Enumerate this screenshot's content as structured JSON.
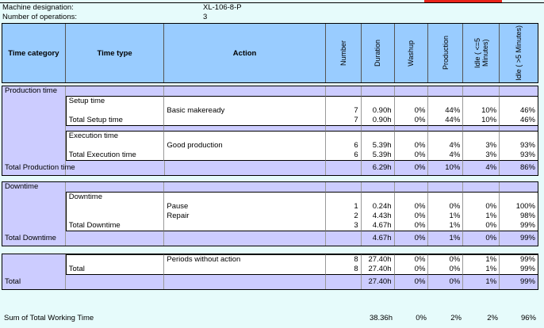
{
  "meta": {
    "machine_label": "Machine designation:",
    "machine_value": "XL-106-8-P",
    "ops_label": "Number of operations:",
    "ops_value": "3"
  },
  "colors": {
    "header": "#99ccff",
    "section": "#ccccff",
    "background": "#e6fbfb",
    "accent": "#e8231a"
  },
  "headers": [
    "Time category",
    "Time type",
    "Action",
    "Number",
    "Duration",
    "Washup",
    "Production",
    "Idle ( <=5 Minutes)",
    "Idle ( >5 Minutes)"
  ],
  "sections": [
    {
      "rows": [
        {
          "kind": "lav",
          "cells": [
            "Production time",
            "",
            "",
            "",
            "",
            "",
            "",
            "",
            ""
          ]
        },
        {
          "kind": "white first",
          "cells": [
            "",
            "Setup time",
            "",
            "",
            "",
            "",
            "",
            "",
            ""
          ]
        },
        {
          "kind": "white",
          "cells": [
            "",
            "",
            "Basic makeready",
            "7",
            "0.90h",
            "0%",
            "44%",
            "10%",
            "46%"
          ]
        },
        {
          "kind": "white last",
          "cells": [
            "",
            "Total Setup time",
            "",
            "7",
            "0.90h",
            "0%",
            "44%",
            "10%",
            "46%"
          ]
        },
        {
          "kind": "lav gap",
          "cells": [
            "",
            "",
            "",
            "",
            "",
            "",
            "",
            "",
            ""
          ]
        },
        {
          "kind": "white first",
          "cells": [
            "",
            "Execution time",
            "",
            "",
            "",
            "",
            "",
            "",
            ""
          ]
        },
        {
          "kind": "white",
          "cells": [
            "",
            "",
            "Good production",
            "6",
            "5.39h",
            "0%",
            "4%",
            "3%",
            "93%"
          ]
        },
        {
          "kind": "white last",
          "cells": [
            "",
            "Total Execution time",
            "",
            "6",
            "5.39h",
            "0%",
            "4%",
            "3%",
            "93%"
          ]
        },
        {
          "kind": "lav total",
          "cells": [
            "Total Production time",
            "",
            "",
            "",
            "6.29h",
            "0%",
            "10%",
            "4%",
            "86%"
          ]
        }
      ]
    },
    {
      "rows": [
        {
          "kind": "lav",
          "cells": [
            "Downtime",
            "",
            "",
            "",
            "",
            "",
            "",
            "",
            ""
          ]
        },
        {
          "kind": "white first",
          "cells": [
            "",
            "Downtime",
            "",
            "",
            "",
            "",
            "",
            "",
            ""
          ]
        },
        {
          "kind": "white",
          "cells": [
            "",
            "",
            "Pause",
            "1",
            "0.24h",
            "0%",
            "0%",
            "0%",
            "100%"
          ]
        },
        {
          "kind": "white",
          "cells": [
            "",
            "",
            "Repair",
            "2",
            "4.43h",
            "0%",
            "1%",
            "1%",
            "98%"
          ]
        },
        {
          "kind": "white last",
          "cells": [
            "",
            "Total Downtime",
            "",
            "3",
            "4.67h",
            "0%",
            "1%",
            "0%",
            "99%"
          ]
        },
        {
          "kind": "lav total",
          "cells": [
            "Total Downtime",
            "",
            "",
            "",
            "4.67h",
            "0%",
            "1%",
            "0%",
            "99%"
          ]
        }
      ]
    },
    {
      "rows": [
        {
          "kind": "lav",
          "cells": [
            "",
            "",
            "",
            "",
            "",
            "",
            "",
            "",
            ""
          ]
        },
        {
          "kind": "white first",
          "cells": [
            "",
            "",
            "",
            "",
            "",
            "",
            "",
            "",
            ""
          ]
        },
        {
          "kind": "white",
          "cells": [
            "",
            "",
            "Periods without action",
            "8",
            "27.40h",
            "0%",
            "0%",
            "1%",
            "99%"
          ]
        },
        {
          "kind": "white last",
          "cells": [
            "",
            "Total",
            "",
            "8",
            "27.40h",
            "0%",
            "0%",
            "1%",
            "99%"
          ]
        },
        {
          "kind": "lav total",
          "cells": [
            "Total",
            "",
            "",
            "",
            "27.40h",
            "0%",
            "0%",
            "1%",
            "99%"
          ]
        }
      ]
    }
  ],
  "sum": {
    "cells": [
      "Sum of Total Working Time",
      "",
      "",
      "",
      "38.36h",
      "0%",
      "2%",
      "2%",
      "96%"
    ]
  }
}
